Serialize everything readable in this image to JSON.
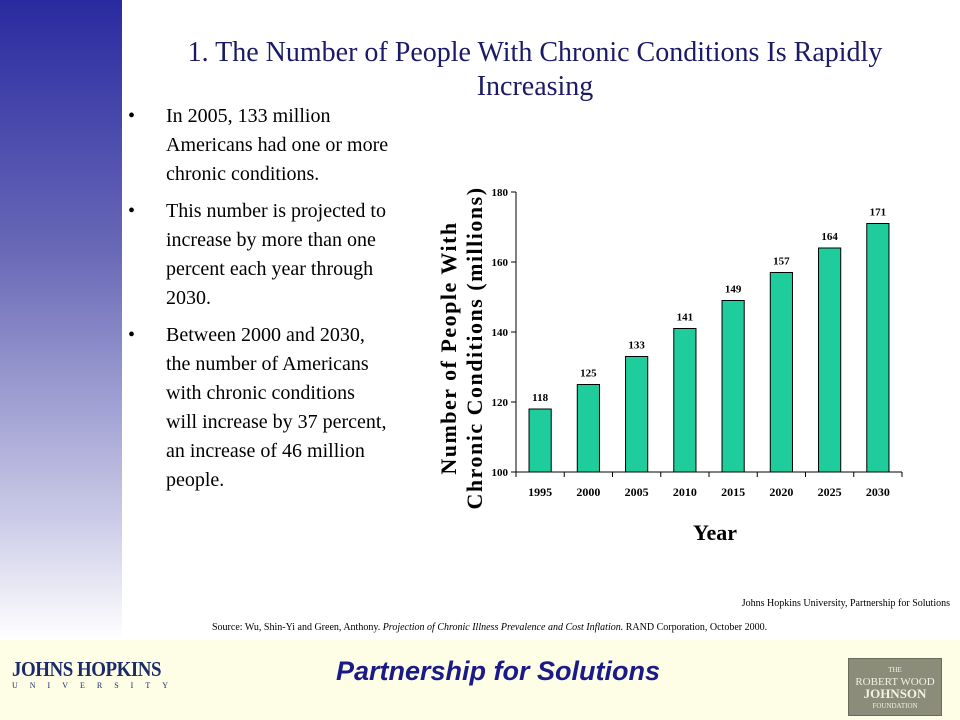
{
  "slide": {
    "title": "1. The Number of People With Chronic Conditions Is Rapidly Increasing",
    "bullets": [
      "In 2005, 133 million Americans had one or more chronic conditions.",
      "This number is projected to increase by more than one percent each year through 2030.",
      "Between 2000 and 2030, the number of Americans with chronic conditions will increase by 37 percent, an increase of 46 million people."
    ],
    "bullet_symbol": "•",
    "attribution": "Johns Hopkins University, Partnership for Solutions",
    "source_prefix": "Source: Wu, Shin-Yi  and Green, Anthony. ",
    "source_title": "Projection of Chronic Illness Prevalence and Cost Inflation.",
    "source_suffix": " RAND Corporation, October 2000."
  },
  "footer": {
    "title": "Partnership for Solutions",
    "jhu_name": "JOHNS HOPKINS",
    "jhu_sub": "UNIVERSITY",
    "rwj_lines": [
      "THE",
      "ROBERT WOOD",
      "JOHNSON",
      "FOUNDATION"
    ],
    "colors": {
      "footer_bg": "#fefee6",
      "title": "#1a1a8a"
    }
  },
  "chart_data": {
    "type": "bar",
    "categories": [
      "1995",
      "2000",
      "2005",
      "2010",
      "2015",
      "2020",
      "2025",
      "2030"
    ],
    "values": [
      118,
      125,
      133,
      141,
      149,
      157,
      164,
      171
    ],
    "title": "",
    "xlabel": "Year",
    "ylabel_lines": [
      "Number of People With",
      "Chronic Conditions (millions)"
    ],
    "ylim": [
      100,
      180
    ],
    "yticks": [
      100,
      120,
      140,
      160,
      180
    ],
    "grid": false,
    "legend": "none",
    "bar_color": "#1fcc9c"
  }
}
